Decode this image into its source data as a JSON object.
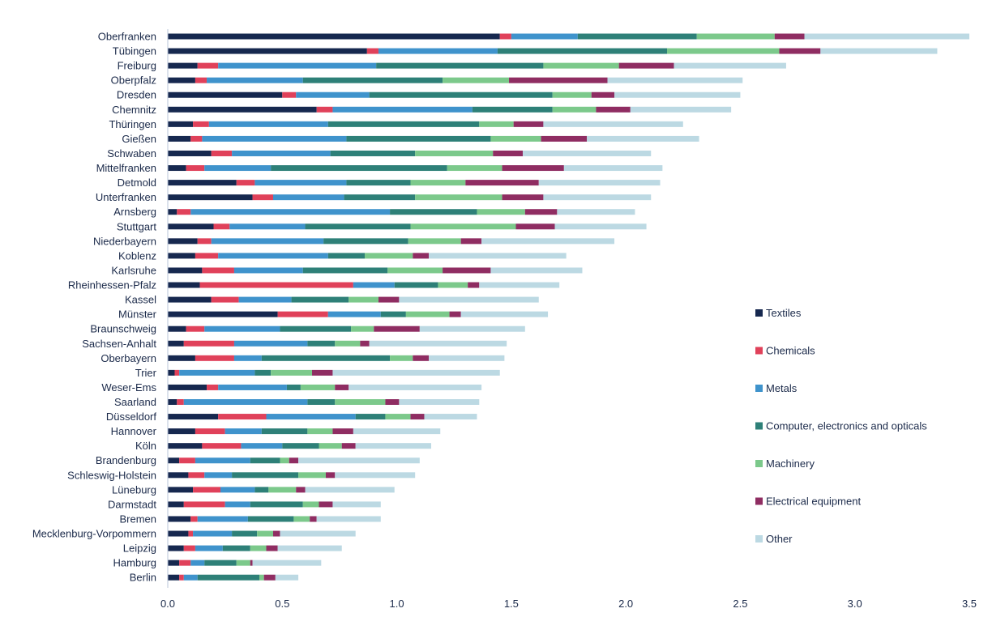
{
  "chart_data": {
    "type": "bar",
    "orientation": "horizontal",
    "stacked": true,
    "title": "",
    "xlabel": "",
    "ylabel": "",
    "xlim": [
      0,
      3.5
    ],
    "x_ticks": [
      "0.0",
      "0.5",
      "1.0",
      "1.5",
      "2.0",
      "2.5",
      "3.0",
      "3.5"
    ],
    "grid": false,
    "legend_position": "right",
    "categories": [
      "Oberfranken",
      "Tübingen",
      "Freiburg",
      "Oberpfalz",
      "Dresden",
      "Chemnitz",
      "Thüringen",
      "Gießen",
      "Schwaben",
      "Mittelfranken",
      "Detmold",
      "Unterfranken",
      "Arnsberg",
      "Stuttgart",
      "Niederbayern",
      "Koblenz",
      "Karlsruhe",
      "Rheinhessen-Pfalz",
      "Kassel",
      "Münster",
      "Braunschweig",
      "Sachsen-Anhalt",
      "Oberbayern",
      "Trier",
      "Weser-Ems",
      "Saarland",
      "Düsseldorf",
      "Hannover",
      "Köln",
      "Brandenburg",
      "Schleswig-Holstein",
      "Lüneburg",
      "Darmstadt",
      "Bremen",
      "Mecklenburg-Vorpommern",
      "Leipzig",
      "Hamburg",
      "Berlin"
    ],
    "series": [
      {
        "name": "Textiles",
        "color": "#16284f",
        "values": [
          1.45,
          0.87,
          0.13,
          0.12,
          0.5,
          0.65,
          0.11,
          0.1,
          0.19,
          0.08,
          0.3,
          0.37,
          0.04,
          0.2,
          0.13,
          0.12,
          0.15,
          0.14,
          0.19,
          0.48,
          0.08,
          0.07,
          0.12,
          0.03,
          0.17,
          0.04,
          0.22,
          0.12,
          0.15,
          0.05,
          0.09,
          0.11,
          0.07,
          0.1,
          0.09,
          0.07,
          0.05,
          0.05
        ]
      },
      {
        "name": "Chemicals",
        "color": "#e0415a",
        "values": [
          0.05,
          0.05,
          0.09,
          0.05,
          0.06,
          0.07,
          0.07,
          0.05,
          0.09,
          0.08,
          0.08,
          0.09,
          0.06,
          0.07,
          0.06,
          0.1,
          0.14,
          0.67,
          0.12,
          0.22,
          0.08,
          0.22,
          0.17,
          0.02,
          0.05,
          0.03,
          0.21,
          0.13,
          0.17,
          0.07,
          0.07,
          0.12,
          0.18,
          0.03,
          0.02,
          0.05,
          0.05,
          0.02
        ]
      },
      {
        "name": "Metals",
        "color": "#3f93cc",
        "values": [
          0.29,
          0.52,
          0.69,
          0.42,
          0.32,
          0.61,
          0.52,
          0.63,
          0.43,
          0.29,
          0.4,
          0.31,
          0.87,
          0.33,
          0.49,
          0.48,
          0.3,
          0.18,
          0.23,
          0.23,
          0.33,
          0.32,
          0.12,
          0.33,
          0.3,
          0.54,
          0.39,
          0.16,
          0.18,
          0.24,
          0.12,
          0.15,
          0.11,
          0.22,
          0.17,
          0.12,
          0.06,
          0.06
        ]
      },
      {
        "name": "Computer, electronics and opticals",
        "color": "#2e8078",
        "values": [
          0.52,
          0.74,
          0.73,
          0.61,
          0.8,
          0.35,
          0.66,
          0.63,
          0.37,
          0.77,
          0.28,
          0.31,
          0.38,
          0.46,
          0.37,
          0.16,
          0.37,
          0.19,
          0.25,
          0.11,
          0.31,
          0.12,
          0.56,
          0.07,
          0.06,
          0.12,
          0.13,
          0.2,
          0.16,
          0.13,
          0.29,
          0.06,
          0.23,
          0.2,
          0.11,
          0.12,
          0.14,
          0.27
        ]
      },
      {
        "name": "Machinery",
        "color": "#7cc98b",
        "values": [
          0.34,
          0.49,
          0.33,
          0.29,
          0.17,
          0.19,
          0.15,
          0.22,
          0.34,
          0.24,
          0.24,
          0.38,
          0.21,
          0.46,
          0.23,
          0.21,
          0.24,
          0.13,
          0.13,
          0.19,
          0.1,
          0.11,
          0.1,
          0.18,
          0.15,
          0.22,
          0.11,
          0.11,
          0.1,
          0.04,
          0.12,
          0.12,
          0.07,
          0.07,
          0.07,
          0.07,
          0.06,
          0.02
        ]
      },
      {
        "name": "Electrical equipment",
        "color": "#8f2d62",
        "values": [
          0.13,
          0.18,
          0.24,
          0.43,
          0.1,
          0.15,
          0.13,
          0.2,
          0.13,
          0.27,
          0.32,
          0.18,
          0.14,
          0.17,
          0.09,
          0.07,
          0.21,
          0.05,
          0.09,
          0.05,
          0.2,
          0.04,
          0.07,
          0.09,
          0.06,
          0.06,
          0.06,
          0.09,
          0.06,
          0.04,
          0.04,
          0.04,
          0.06,
          0.03,
          0.03,
          0.05,
          0.01,
          0.05
        ]
      },
      {
        "name": "Other",
        "color": "#bcd9e3",
        "values": [
          0.72,
          0.51,
          0.49,
          0.59,
          0.55,
          0.44,
          0.61,
          0.49,
          0.56,
          0.43,
          0.53,
          0.47,
          0.34,
          0.4,
          0.58,
          0.6,
          0.4,
          0.35,
          0.61,
          0.38,
          0.46,
          0.6,
          0.33,
          0.73,
          0.58,
          0.35,
          0.23,
          0.38,
          0.33,
          0.53,
          0.35,
          0.39,
          0.21,
          0.28,
          0.33,
          0.28,
          0.3,
          0.1
        ]
      }
    ]
  }
}
